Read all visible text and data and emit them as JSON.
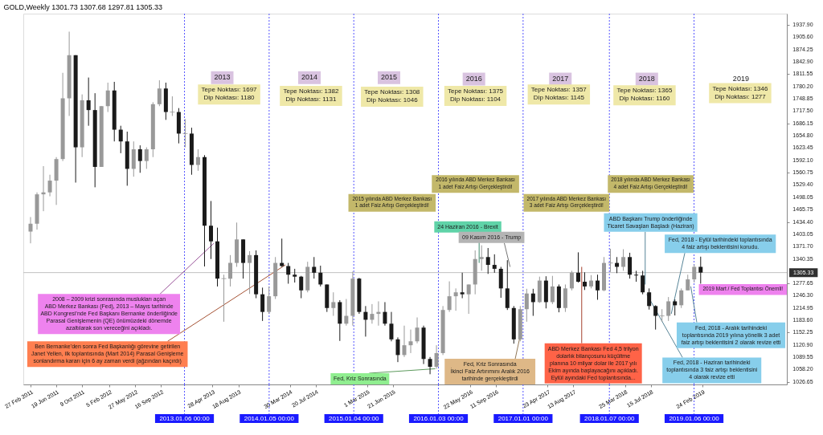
{
  "chart_data": {
    "type": "candlestick",
    "title": "GOLD,Weekly 1301.73 1307.68 1297.81 1305.33",
    "xlim": [
      "2011-02-13",
      "2020-02-09"
    ],
    "ylim": [
      1020,
      1966
    ],
    "xticks": [
      {
        "value": "2011-02-27",
        "label": "27 Feb 2011"
      },
      {
        "value": "2011-06-19",
        "label": "19 Jun 2011"
      },
      {
        "value": "2011-10-09",
        "label": "9 Oct 2011"
      },
      {
        "value": "2012-02-05",
        "label": "5 Feb 2012"
      },
      {
        "value": "2012-05-27",
        "label": "27 May 2012"
      },
      {
        "value": "2012-09-16",
        "label": "16 Sep 2012"
      },
      {
        "value": "2013-04-28",
        "label": "28 Apr 2013"
      },
      {
        "value": "2013-08-18",
        "label": "18 Aug 2013"
      },
      {
        "value": "2014-03-30",
        "label": "30 Mar 2014"
      },
      {
        "value": "2014-07-20",
        "label": "20 Jul 2014"
      },
      {
        "value": "2015-03-01",
        "label": "1 Mar 2015"
      },
      {
        "value": "2015-06-21",
        "label": "21 Jun 2015"
      },
      {
        "value": "2016-05-22",
        "label": "22 May 2016"
      },
      {
        "value": "2016-09-11",
        "label": "11 Sep 2016"
      },
      {
        "value": "2017-04-23",
        "label": "23 Apr 2017"
      },
      {
        "value": "2017-08-13",
        "label": "13 Aug 2017"
      },
      {
        "value": "2018-03-25",
        "label": "25 Mar 2018"
      },
      {
        "value": "2018-07-15",
        "label": "15 Jul 2018"
      },
      {
        "value": "2019-02-24",
        "label": "24 Feb 2019"
      }
    ],
    "yticks": [
      {
        "value": 1937.9,
        "label": "1937.90"
      },
      {
        "value": 1905.6,
        "label": "1905.60"
      },
      {
        "value": 1874.25,
        "label": "1874.25"
      },
      {
        "value": 1842.9,
        "label": "1842.90"
      },
      {
        "value": 1811.55,
        "label": "1811.55"
      },
      {
        "value": 1780.2,
        "label": "1780.20"
      },
      {
        "value": 1748.85,
        "label": "1748.85"
      },
      {
        "value": 1717.5,
        "label": "1717.50"
      },
      {
        "value": 1686.15,
        "label": "1686.15"
      },
      {
        "value": 1654.8,
        "label": "1654.80"
      },
      {
        "value": 1623.45,
        "label": "1623.45"
      },
      {
        "value": 1592.1,
        "label": "1592.10"
      },
      {
        "value": 1560.75,
        "label": "1560.75"
      },
      {
        "value": 1529.4,
        "label": "1529.40"
      },
      {
        "value": 1498.05,
        "label": "1498.05"
      },
      {
        "value": 1465.75,
        "label": "1465.75"
      },
      {
        "value": 1434.4,
        "label": "1434.40"
      },
      {
        "value": 1403.05,
        "label": "1403.05"
      },
      {
        "value": 1371.7,
        "label": "1371.70"
      },
      {
        "value": 1340.35,
        "label": "1340.35"
      },
      {
        "value": 1277.65,
        "label": "1277.65"
      },
      {
        "value": 1246.3,
        "label": "1246.30"
      },
      {
        "value": 1214.95,
        "label": "1214.95"
      },
      {
        "value": 1183.6,
        "label": "1183.60"
      },
      {
        "value": 1152.25,
        "label": "1152.25"
      },
      {
        "value": 1120.9,
        "label": "1120.90"
      },
      {
        "value": 1089.55,
        "label": "1089.55"
      },
      {
        "value": 1058.2,
        "label": "1058.20"
      },
      {
        "value": 1026.65,
        "label": "1026.65"
      }
    ],
    "x": [
      "2011-02-27",
      "2011-03-27",
      "2011-04-24",
      "2011-05-22",
      "2011-06-19",
      "2011-07-17",
      "2011-08-14",
      "2011-09-11",
      "2011-10-09",
      "2011-11-06",
      "2011-12-04",
      "2012-01-01",
      "2012-01-29",
      "2012-02-26",
      "2012-03-25",
      "2012-04-22",
      "2012-05-20",
      "2012-06-17",
      "2012-07-15",
      "2012-08-12",
      "2012-09-09",
      "2012-10-07",
      "2012-11-04",
      "2012-12-02",
      "2012-12-30",
      "2013-01-27",
      "2013-02-24",
      "2013-03-24",
      "2013-04-21",
      "2013-05-19",
      "2013-06-16",
      "2013-07-14",
      "2013-08-11",
      "2013-09-08",
      "2013-10-06",
      "2013-11-03",
      "2013-12-01",
      "2013-12-29",
      "2014-01-26",
      "2014-02-23",
      "2014-03-23",
      "2014-04-20",
      "2014-05-18",
      "2014-06-15",
      "2014-07-13",
      "2014-08-10",
      "2014-09-07",
      "2014-10-05",
      "2014-11-02",
      "2014-11-30",
      "2014-12-28",
      "2015-01-25",
      "2015-02-22",
      "2015-03-22",
      "2015-04-19",
      "2015-05-17",
      "2015-06-14",
      "2015-07-12",
      "2015-08-09",
      "2015-09-06",
      "2015-10-04",
      "2015-11-01",
      "2015-11-29",
      "2015-12-27",
      "2016-01-24",
      "2016-02-21",
      "2016-03-20",
      "2016-04-17",
      "2016-05-15",
      "2016-06-12",
      "2016-07-10",
      "2016-08-07",
      "2016-09-04",
      "2016-10-02",
      "2016-10-30",
      "2016-11-27",
      "2016-12-25",
      "2017-01-22",
      "2017-02-19",
      "2017-03-19",
      "2017-04-16",
      "2017-05-14",
      "2017-06-11",
      "2017-07-09",
      "2017-08-06",
      "2017-09-03",
      "2017-10-01",
      "2017-10-29",
      "2017-11-26",
      "2017-12-24",
      "2018-01-21",
      "2018-02-18",
      "2018-03-18",
      "2018-04-15",
      "2018-05-13",
      "2018-06-10",
      "2018-07-08",
      "2018-08-05",
      "2018-09-02",
      "2018-09-30",
      "2018-10-28",
      "2018-11-25",
      "2018-12-23",
      "2019-01-20",
      "2019-02-17"
    ],
    "ohlc": [
      [
        1410,
        1447,
        1380,
        1430
      ],
      [
        1430,
        1510,
        1415,
        1505
      ],
      [
        1505,
        1577,
        1462,
        1510
      ],
      [
        1510,
        1555,
        1500,
        1540
      ],
      [
        1540,
        1600,
        1478,
        1595
      ],
      [
        1595,
        1815,
        1590,
        1750
      ],
      [
        1750,
        1920,
        1705,
        1860
      ],
      [
        1860,
        1860,
        1535,
        1625
      ],
      [
        1625,
        1760,
        1600,
        1745
      ],
      [
        1745,
        1803,
        1680,
        1720
      ],
      [
        1720,
        1763,
        1523,
        1575
      ],
      [
        1575,
        1730,
        1575,
        1730
      ],
      [
        1730,
        1790,
        1715,
        1770
      ],
      [
        1770,
        1792,
        1640,
        1670
      ],
      [
        1670,
        1680,
        1610,
        1640
      ],
      [
        1640,
        1665,
        1527,
        1570
      ],
      [
        1570,
        1640,
        1550,
        1620
      ],
      [
        1620,
        1630,
        1560,
        1590
      ],
      [
        1590,
        1625,
        1570,
        1620
      ],
      [
        1620,
        1740,
        1600,
        1735
      ],
      [
        1735,
        1796,
        1730,
        1775
      ],
      [
        1775,
        1790,
        1695,
        1715
      ],
      [
        1715,
        1755,
        1705,
        1715
      ],
      [
        1715,
        1725,
        1635,
        1660
      ],
      [
        1660,
        1697,
        1625,
        1660
      ],
      [
        1660,
        1675,
        1555,
        1580
      ],
      [
        1580,
        1620,
        1565,
        1600
      ],
      [
        1600,
        1605,
        1321,
        1425
      ],
      [
        1425,
        1488,
        1340,
        1385
      ],
      [
        1385,
        1420,
        1270,
        1290
      ],
      [
        1290,
        1300,
        1180,
        1290
      ],
      [
        1290,
        1350,
        1270,
        1330
      ],
      [
        1330,
        1433,
        1320,
        1390
      ],
      [
        1390,
        1390,
        1290,
        1330
      ],
      [
        1330,
        1360,
        1251,
        1350
      ],
      [
        1350,
        1362,
        1240,
        1250
      ],
      [
        1250,
        1267,
        1182,
        1205
      ],
      [
        1205,
        1270,
        1200,
        1245
      ],
      [
        1245,
        1345,
        1238,
        1330
      ],
      [
        1330,
        1392,
        1320,
        1322
      ],
      [
        1322,
        1330,
        1277,
        1300
      ],
      [
        1300,
        1315,
        1280,
        1295
      ],
      [
        1295,
        1297,
        1240,
        1260
      ],
      [
        1260,
        1333,
        1255,
        1320
      ],
      [
        1320,
        1345,
        1290,
        1305
      ],
      [
        1305,
        1323,
        1270,
        1275
      ],
      [
        1275,
        1275,
        1205,
        1215
      ],
      [
        1215,
        1255,
        1195,
        1230
      ],
      [
        1230,
        1235,
        1131,
        1175
      ],
      [
        1175,
        1238,
        1170,
        1195
      ],
      [
        1195,
        1308,
        1170,
        1290
      ],
      [
        1290,
        1292,
        1200,
        1205
      ],
      [
        1205,
        1220,
        1142,
        1185
      ],
      [
        1185,
        1225,
        1175,
        1200
      ],
      [
        1200,
        1232,
        1170,
        1205
      ],
      [
        1205,
        1230,
        1170,
        1175
      ],
      [
        1175,
        1205,
        1130,
        1135
      ],
      [
        1135,
        1140,
        1077,
        1095
      ],
      [
        1095,
        1170,
        1090,
        1120
      ],
      [
        1120,
        1160,
        1100,
        1130
      ],
      [
        1130,
        1191,
        1125,
        1165
      ],
      [
        1165,
        1170,
        1072,
        1085
      ],
      [
        1085,
        1090,
        1046,
        1065
      ],
      [
        1065,
        1120,
        1060,
        1100
      ],
      [
        1100,
        1220,
        1095,
        1210
      ],
      [
        1210,
        1283,
        1205,
        1245
      ],
      [
        1245,
        1265,
        1208,
        1255
      ],
      [
        1255,
        1305,
        1240,
        1250
      ],
      [
        1250,
        1275,
        1200,
        1275
      ],
      [
        1275,
        1362,
        1250,
        1340
      ],
      [
        1340,
        1375,
        1310,
        1345
      ],
      [
        1345,
        1368,
        1302,
        1325
      ],
      [
        1325,
        1352,
        1305,
        1315
      ],
      [
        1315,
        1320,
        1241,
        1265
      ],
      [
        1265,
        1337,
        1210,
        1215
      ],
      [
        1215,
        1220,
        1124,
        1135
      ],
      [
        1135,
        1220,
        1130,
        1212
      ],
      [
        1212,
        1264,
        1180,
        1252
      ],
      [
        1252,
        1264,
        1195,
        1230
      ],
      [
        1230,
        1295,
        1228,
        1285
      ],
      [
        1285,
        1296,
        1214,
        1230
      ],
      [
        1230,
        1297,
        1225,
        1270
      ],
      [
        1270,
        1275,
        1204,
        1215
      ],
      [
        1215,
        1275,
        1205,
        1265
      ],
      [
        1265,
        1310,
        1260,
        1305
      ],
      [
        1305,
        1357,
        1280,
        1282
      ],
      [
        1282,
        1306,
        1261,
        1270
      ],
      [
        1270,
        1299,
        1265,
        1285
      ],
      [
        1285,
        1300,
        1236,
        1260
      ],
      [
        1260,
        1345,
        1258,
        1330
      ],
      [
        1330,
        1366,
        1307,
        1330
      ],
      [
        1330,
        1345,
        1304,
        1320
      ],
      [
        1320,
        1365,
        1310,
        1345
      ],
      [
        1345,
        1356,
        1290,
        1300
      ],
      [
        1300,
        1310,
        1282,
        1298
      ],
      [
        1298,
        1310,
        1250,
        1255
      ],
      [
        1255,
        1265,
        1211,
        1220
      ],
      [
        1220,
        1222,
        1160,
        1195
      ],
      [
        1195,
        1212,
        1180,
        1195
      ],
      [
        1195,
        1243,
        1182,
        1232
      ],
      [
        1232,
        1237,
        1196,
        1222
      ],
      [
        1222,
        1265,
        1215,
        1260
      ],
      [
        1260,
        1300,
        1260,
        1288
      ],
      [
        1288,
        1326,
        1280,
        1320
      ],
      [
        1320,
        1346,
        1277,
        1305.33
      ]
    ],
    "colors": [
      "#999999",
      "#999999",
      "#999999",
      "#999999",
      "#999999",
      "#999999",
      "#999999",
      "#1a1a1a",
      "#999999",
      "#1a1a1a",
      "#1a1a1a",
      "#999999",
      "#999999",
      "#1a1a1a",
      "#1a1a1a",
      "#1a1a1a",
      "#999999",
      "#1a1a1a",
      "#999999",
      "#999999",
      "#999999",
      "#1a1a1a",
      "#999999",
      "#1a1a1a",
      "#999999",
      "#1a1a1a",
      "#999999",
      "#1a1a1a",
      "#1a1a1a",
      "#1a1a1a",
      "#999999",
      "#999999",
      "#999999",
      "#1a1a1a",
      "#999999",
      "#1a1a1a",
      "#1a1a1a",
      "#999999",
      "#999999",
      "#1a1a1a",
      "#1a1a1a",
      "#1a1a1a",
      "#1a1a1a",
      "#999999",
      "#1a1a1a",
      "#1a1a1a",
      "#1a1a1a",
      "#999999",
      "#1a1a1a",
      "#999999",
      "#999999",
      "#1a1a1a",
      "#1a1a1a",
      "#999999",
      "#999999",
      "#1a1a1a",
      "#1a1a1a",
      "#1a1a1a",
      "#999999",
      "#999999",
      "#999999",
      "#1a1a1a",
      "#1a1a1a",
      "#999999",
      "#999999",
      "#999999",
      "#999999",
      "#1a1a1a",
      "#999999",
      "#999999",
      "#999999",
      "#1a1a1a",
      "#1a1a1a",
      "#1a1a1a",
      "#1a1a1a",
      "#1a1a1a",
      "#999999",
      "#999999",
      "#1a1a1a",
      "#999999",
      "#1a1a1a",
      "#999999",
      "#1a1a1a",
      "#999999",
      "#999999",
      "#1a1a1a",
      "#1a1a1a",
      "#999999",
      "#1a1a1a",
      "#999999",
      "#999999",
      "#1a1a1a",
      "#999999",
      "#1a1a1a",
      "#1a1a1a",
      "#1a1a1a",
      "#1a1a1a",
      "#1a1a1a",
      "#999999",
      "#999999",
      "#1a1a1a",
      "#999999",
      "#999999",
      "#999999",
      "#1a1a1a"
    ],
    "ref_lines": [
      {
        "axis": "x",
        "value": "2013-01-06",
        "label": "2013.01.06 00:00",
        "color": "#5555ff",
        "line_style": "dotted"
      },
      {
        "axis": "x",
        "value": "2014-01-05",
        "label": "2014.01.05 00:00",
        "color": "#5555ff",
        "line_style": "dotted"
      },
      {
        "axis": "x",
        "value": "2015-01-04",
        "label": "2015.01.04 00:00",
        "color": "#5555ff",
        "line_style": "dotted"
      },
      {
        "axis": "x",
        "value": "2016-01-03",
        "label": "2016.01.03 00:00",
        "color": "#5555ff",
        "line_style": "dotted"
      },
      {
        "axis": "x",
        "value": "2017-01-01",
        "label": "2017.01.01 00:00",
        "color": "#5555ff",
        "line_style": "dotted"
      },
      {
        "axis": "x",
        "value": "2018-01-07",
        "label": "2018.01.07 00:00",
        "color": "#5555ff",
        "line_style": "dotted"
      },
      {
        "axis": "x",
        "value": "2019-01-06",
        "label": "2019.01.06 00:00",
        "color": "#5555ff",
        "line_style": "dotted"
      },
      {
        "axis": "y",
        "value": 1305.33,
        "label": "1305.33",
        "color": "#c0c0c0",
        "line_style": "solid"
      }
    ],
    "annotations": [
      "2013",
      "Tepe Noktası: 1697\nDip Noktası: 1180",
      "2014",
      "Tepe Noktası: 1382\nDip Noktası: 1131",
      "2015",
      "Tepe Noktası: 1308\nDip Noktası: 1046",
      "2016",
      "Tepe Noktası: 1375\nDip Noktası: 1104",
      "2017",
      "Tepe Noktası: 1357\nDip Noktası: 1145",
      "2018",
      "Tepe Noktası: 1365\nDip Noktası: 1160",
      "2019",
      "Tepe Noktası: 1346\nDip Noktası: 1277",
      "2015  yılında ABD Merkez Bankası\n1 adet Faiz Artışı Gerçekleştirdi!",
      "2016  yılında ABD Merkez Bankası\n1 adet Faiz Artışı Gerçekleştirdi!",
      "2017 yılında ABD Merkez Bankası\n3 adet Faiz Artışı Gerçekleştirdi!",
      "2018 yılında ABD Merkez Bankası\n4 adet Faiz Artışı Gerçekleştirdi!",
      {
        "text": "2008 – 2009 krizi sonrasında muslukları açan\nABD Merkez Bankası (Fed), 2013 – Mayıs tarihinde\nABD Kongresi’nde Fed Başkanı Bernanke önderliğinde\nParasal Genişlemenin (QE) önümüzdeki dönemde\nazaltılarak son vereceğini açıkladı.",
        "x": "2013-05-12",
        "y": 1380
      },
      {
        "text": "Ben Bernanke’den sonra Fed Başkanlığı görevine getirilen\nJanet Yellen, ilk toplantısında (Mart 2014) Parasal Genişleme\nsonlandırma kararı için 6 ay zaman verdi (ağzından kaçırdı)",
        "x": "2014-03-16",
        "y": 1325
      },
      {
        "text": "Fed, Kriz Sonrasında",
        "x": "2015-12-20",
        "y": 1060
      },
      {
        "text": "24 Haziran 2016 - Brexit",
        "x": "2016-06-26",
        "y": 1330
      },
      {
        "text": "09 Kasım 2016 - Trump",
        "x": "2016-11-06",
        "y": 1320
      },
      {
        "text": "Fed, Kriz Sonrasında\nİkinci Faiz Artırımını Aralık 2016\ntarihinde gerçekleştirdi",
        "x": "2016-12-18",
        "y": 1140
      },
      {
        "text": "ABD Merkez Bankası Fed 4,5 trilyon\ndolarlık bilançosunu küçültme\nplanına 10 milyar dolar ile 2017 yılı\nEkim ayında başlayacağını açıkladı.\nEylül ayındaki Fed toplantısında...",
        "x": "2017-09-10",
        "y": 1320
      },
      {
        "text": "ABD Başkanı Trump önderliğinde\nTicaret Savaşları Başladı (Haziran)",
        "x": "2018-06-10",
        "y": 1275
      },
      {
        "text": "Fed, 2018 - Haziran tarihindeki\ntoplantısında 3 faiz artışı beklentisini\n4 olarak revize etti",
        "x": "2018-06-17",
        "y": 1250
      },
      {
        "text": "Fed, 2018 - Eylül tarihindeki toplantısında\n4 faiz artışı beklentisini korudu.",
        "x": "2018-09-30",
        "y": 1200
      },
      {
        "text": "Fed, 2018 - Aralık tarihindeki\ntoplantısında 2019 yılına yönelik 3 adet\nfaiz artışı beklentisini 2 olarak revize etti",
        "x": "2018-12-23",
        "y": 1270
      },
      "2019 Mart / Fed Toplantısı Önemli!"
    ]
  }
}
